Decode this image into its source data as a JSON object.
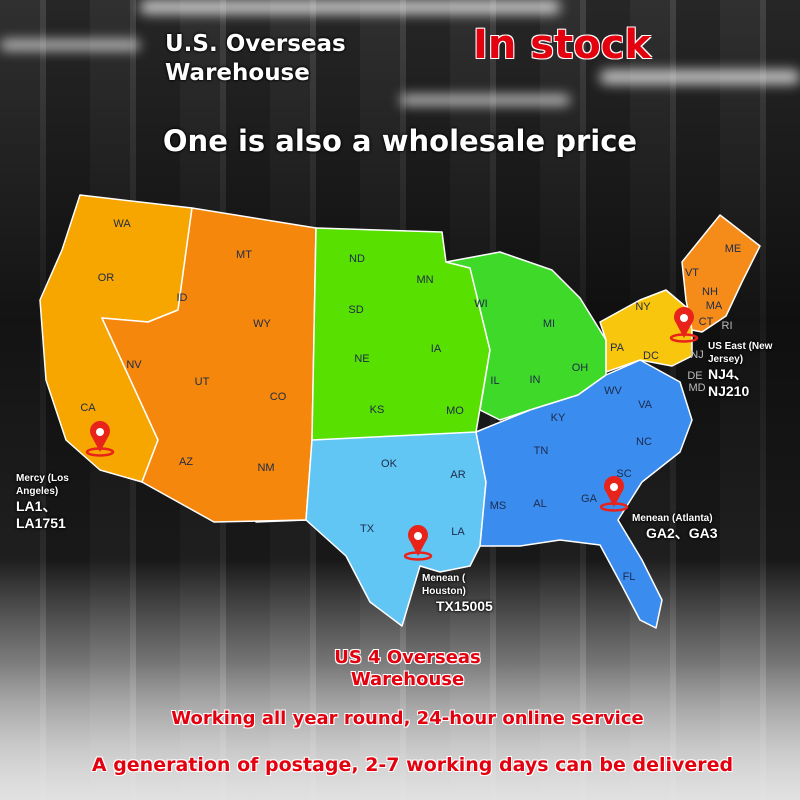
{
  "header": {
    "title": "U.S. Overseas Warehouse",
    "stock": "In stock",
    "subtitle": "One is also a wholesale price"
  },
  "map": {
    "regions": [
      {
        "color": "#f7a600",
        "states": [
          "WA",
          "OR",
          "CA"
        ]
      },
      {
        "color": "#f5870c",
        "states": [
          "MT",
          "ID",
          "WY",
          "NV",
          "UT",
          "CO",
          "AZ",
          "NM"
        ]
      },
      {
        "color": "#57e000",
        "states": [
          "ND",
          "SD",
          "NE",
          "KS",
          "MN",
          "IA",
          "MO"
        ]
      },
      {
        "color": "#3fd92a",
        "states": [
          "WI",
          "MI",
          "IL",
          "IN",
          "OH"
        ]
      },
      {
        "color": "#62c6f5",
        "states": [
          "OK",
          "TX",
          "AR",
          "LA"
        ]
      },
      {
        "color": "#3a8cef",
        "states": [
          "MS",
          "AL",
          "GA",
          "FL",
          "TN",
          "KY",
          "WV",
          "VA",
          "NC",
          "SC",
          "DC"
        ]
      },
      {
        "color": "#f9c60e",
        "states": [
          "NY",
          "PA",
          "NJ",
          "DE",
          "MD"
        ]
      },
      {
        "color": "#f58c1a",
        "states": [
          "VT",
          "NH",
          "ME",
          "MA",
          "CT",
          "RI"
        ]
      }
    ],
    "labels": [
      "WA",
      "OR",
      "CA",
      "ID",
      "MT",
      "WY",
      "NV",
      "UT",
      "CO",
      "AZ",
      "NM",
      "ND",
      "SD",
      "NE",
      "KS",
      "MN",
      "IA",
      "MO",
      "WI",
      "MI",
      "IL",
      "IN",
      "OH",
      "OK",
      "TX",
      "AR",
      "LA",
      "MS",
      "AL",
      "GA",
      "FL",
      "TN",
      "KY",
      "WV",
      "VA",
      "NC",
      "SC",
      "DC",
      "NY",
      "PA",
      "VT",
      "NH",
      "ME",
      "MA",
      "CT",
      "RI",
      "NJ",
      "DE",
      "MD"
    ]
  },
  "warehouses": [
    {
      "name": "Mercy (Los Angeles)",
      "codes": "LA1、LA1751"
    },
    {
      "name": "Menean ( Houston)",
      "codes": "TX15005"
    },
    {
      "name": "Menean (Atlanta)",
      "codes": "GA2、GA3"
    },
    {
      "name": "US East (New Jersey)",
      "codes": "NJ4、NJ210"
    }
  ],
  "pin_color": "#e8231a",
  "footer": {
    "count": "US 4 Overseas",
    "count2": "Warehouse",
    "service": "Working all year round, 24-hour online service",
    "delivery": "A generation of postage, 2-7 working days can be delivered"
  }
}
